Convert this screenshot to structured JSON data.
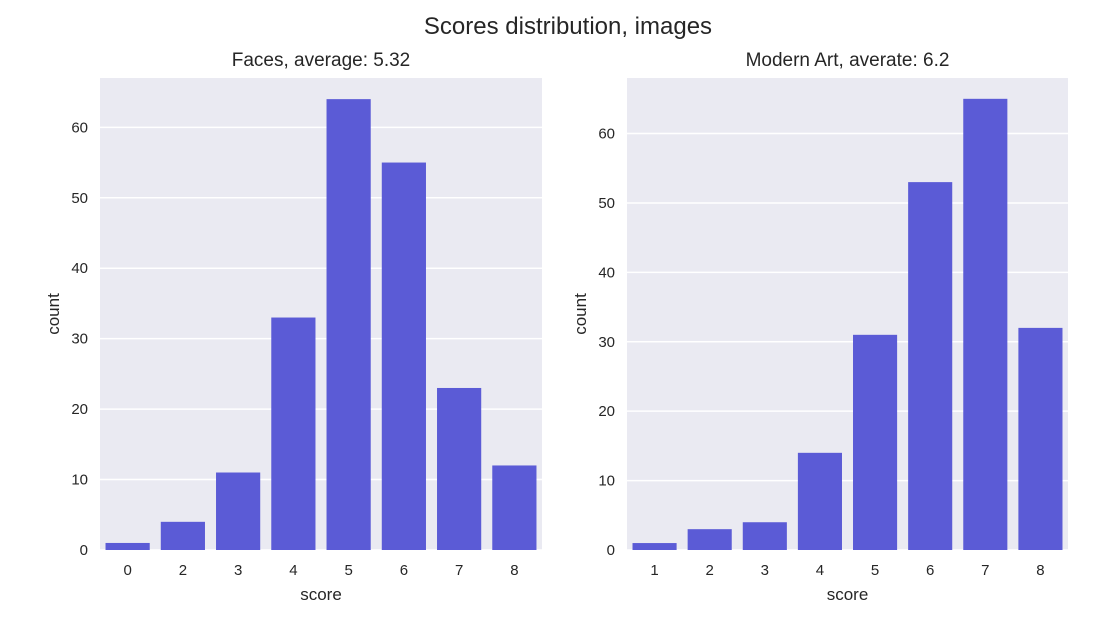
{
  "figure": {
    "suptitle": "Scores distribution, images"
  },
  "colors": {
    "bar": "#5b5bd6",
    "panel_bg": "#eaeaf2",
    "grid": "#ffffff",
    "text": "#262626"
  },
  "chart_data": [
    {
      "type": "bar",
      "title": "Faces, average: 5.32",
      "xlabel": "score",
      "ylabel": "count",
      "categories": [
        "0",
        "2",
        "3",
        "4",
        "5",
        "6",
        "7",
        "8"
      ],
      "values": [
        1,
        4,
        11,
        33,
        64,
        55,
        23,
        12
      ],
      "ylim": [
        0,
        67
      ],
      "yticks": [
        0,
        10,
        20,
        30,
        40,
        50,
        60
      ],
      "grid": true,
      "legend": "none"
    },
    {
      "type": "bar",
      "title": "Modern Art, averate: 6.2",
      "xlabel": "score",
      "ylabel": "count",
      "categories": [
        "1",
        "2",
        "3",
        "4",
        "5",
        "6",
        "7",
        "8"
      ],
      "values": [
        1,
        3,
        4,
        14,
        31,
        53,
        65,
        32
      ],
      "ylim": [
        0,
        68
      ],
      "yticks": [
        0,
        10,
        20,
        30,
        40,
        50,
        60
      ],
      "grid": true,
      "legend": "none"
    }
  ]
}
